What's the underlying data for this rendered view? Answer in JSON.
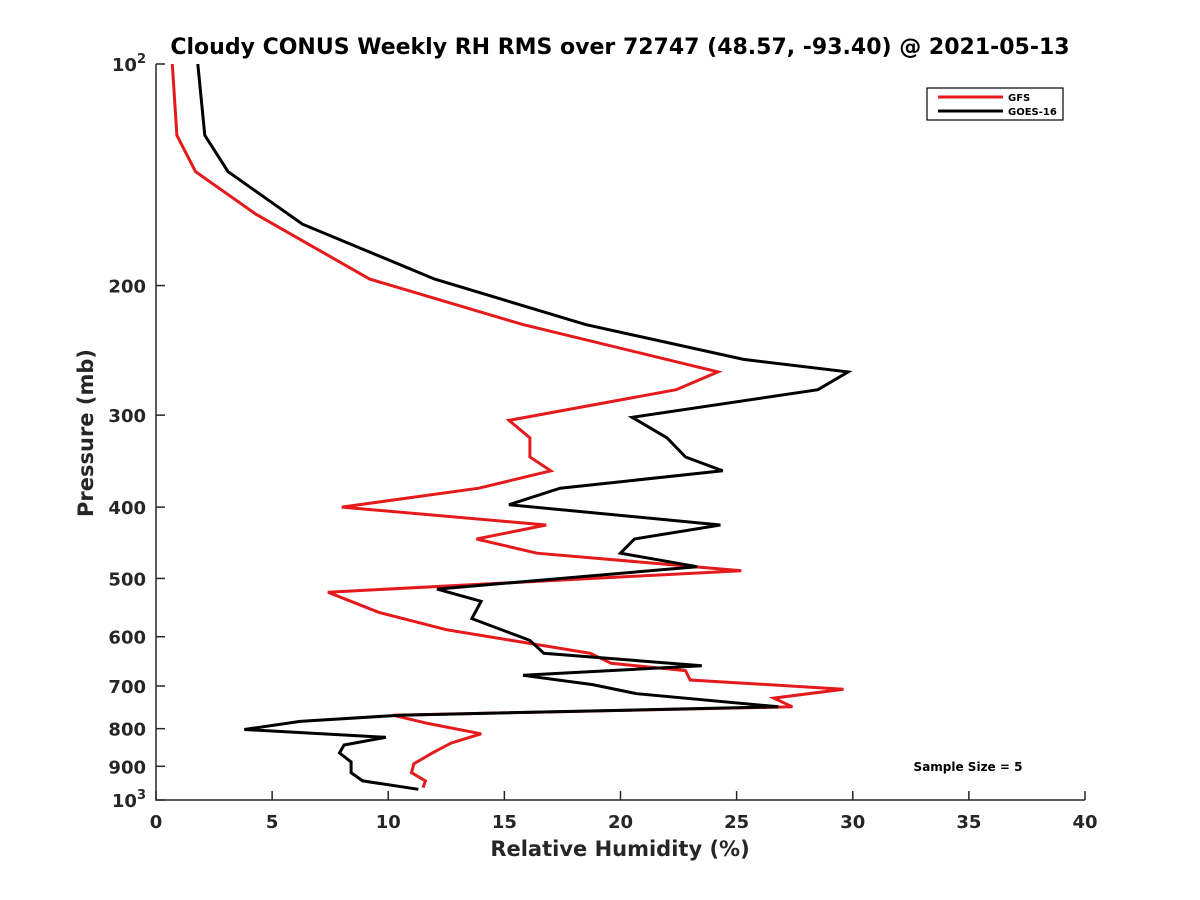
{
  "chart_data": {
    "type": "line",
    "title": "Cloudy CONUS Weekly RH RMS over 72747 (48.57, -93.40) @ 2021-05-13",
    "xlabel": "Relative Humidity (%)",
    "ylabel": "Pressure (mb)",
    "xlim": [
      0,
      40
    ],
    "ylim": [
      100,
      1000
    ],
    "yscale": "log",
    "y_reversed": true,
    "grid": false,
    "legend_position": "top-right",
    "x_ticks": [
      {
        "value": 0,
        "label": "0"
      },
      {
        "value": 5,
        "label": "5"
      },
      {
        "value": 10,
        "label": "10"
      },
      {
        "value": 15,
        "label": "15"
      },
      {
        "value": 20,
        "label": "20"
      },
      {
        "value": 25,
        "label": "25"
      },
      {
        "value": 30,
        "label": "30"
      },
      {
        "value": 35,
        "label": "35"
      },
      {
        "value": 40,
        "label": "40"
      }
    ],
    "y_ticks": [
      {
        "value": 100,
        "label": "10",
        "sup": "2"
      },
      {
        "value": 200,
        "label": "200",
        "sup": ""
      },
      {
        "value": 300,
        "label": "300",
        "sup": ""
      },
      {
        "value": 400,
        "label": "400",
        "sup": ""
      },
      {
        "value": 500,
        "label": "500",
        "sup": ""
      },
      {
        "value": 600,
        "label": "600",
        "sup": ""
      },
      {
        "value": 700,
        "label": "700",
        "sup": ""
      },
      {
        "value": 800,
        "label": "800",
        "sup": ""
      },
      {
        "value": 900,
        "label": "900",
        "sup": ""
      },
      {
        "value": 1000,
        "label": "10",
        "sup": "3"
      }
    ],
    "series": [
      {
        "name": "GFS",
        "color": "#e41a1c",
        "points": [
          [
            0.7,
            100
          ],
          [
            0.9,
            125
          ],
          [
            1.7,
            140
          ],
          [
            4.3,
            160
          ],
          [
            9.2,
            196
          ],
          [
            15.8,
            226
          ],
          [
            24.2,
            262
          ],
          [
            22.4,
            277
          ],
          [
            15.2,
            305
          ],
          [
            16.1,
            322
          ],
          [
            16.1,
            342
          ],
          [
            17.0,
            357
          ],
          [
            13.9,
            377
          ],
          [
            8.0,
            400
          ],
          [
            16.8,
            423
          ],
          [
            13.8,
            442
          ],
          [
            16.4,
            462
          ],
          [
            25.2,
            488
          ],
          [
            7.4,
            522
          ],
          [
            9.6,
            556
          ],
          [
            12.5,
            587
          ],
          [
            18.7,
            632
          ],
          [
            19.6,
            652
          ],
          [
            22.8,
            667
          ],
          [
            23.0,
            687
          ],
          [
            29.6,
            707
          ],
          [
            26.6,
            727
          ],
          [
            27.4,
            747
          ],
          [
            10.2,
            767
          ],
          [
            11.7,
            787
          ],
          [
            14.0,
            813
          ],
          [
            12.7,
            837
          ],
          [
            11.9,
            863
          ],
          [
            11.1,
            893
          ],
          [
            11.0,
            918
          ],
          [
            11.6,
            942
          ],
          [
            11.5,
            962
          ]
        ]
      },
      {
        "name": "GOES-16",
        "color": "#000000",
        "points": [
          [
            1.8,
            100
          ],
          [
            2.1,
            125
          ],
          [
            3.1,
            140
          ],
          [
            6.3,
            165
          ],
          [
            12.0,
            196
          ],
          [
            18.5,
            226
          ],
          [
            25.3,
            252
          ],
          [
            29.8,
            262
          ],
          [
            28.5,
            277
          ],
          [
            20.5,
            302
          ],
          [
            22.0,
            322
          ],
          [
            22.8,
            342
          ],
          [
            24.4,
            357
          ],
          [
            17.4,
            377
          ],
          [
            15.2,
            397
          ],
          [
            24.3,
            423
          ],
          [
            20.6,
            442
          ],
          [
            20.0,
            462
          ],
          [
            23.3,
            482
          ],
          [
            12.1,
            517
          ],
          [
            14.0,
            537
          ],
          [
            13.6,
            567
          ],
          [
            16.1,
            607
          ],
          [
            16.7,
            632
          ],
          [
            23.5,
            657
          ],
          [
            15.8,
            677
          ],
          [
            18.8,
            697
          ],
          [
            20.7,
            717
          ],
          [
            26.8,
            747
          ],
          [
            10.5,
            767
          ],
          [
            6.2,
            782
          ],
          [
            3.8,
            802
          ],
          [
            9.9,
            822
          ],
          [
            8.1,
            842
          ],
          [
            7.9,
            863
          ],
          [
            8.4,
            888
          ],
          [
            8.4,
            918
          ],
          [
            8.9,
            942
          ],
          [
            11.3,
            967
          ]
        ]
      }
    ],
    "annotations": [
      {
        "text": "Sample Size = 5"
      }
    ]
  }
}
